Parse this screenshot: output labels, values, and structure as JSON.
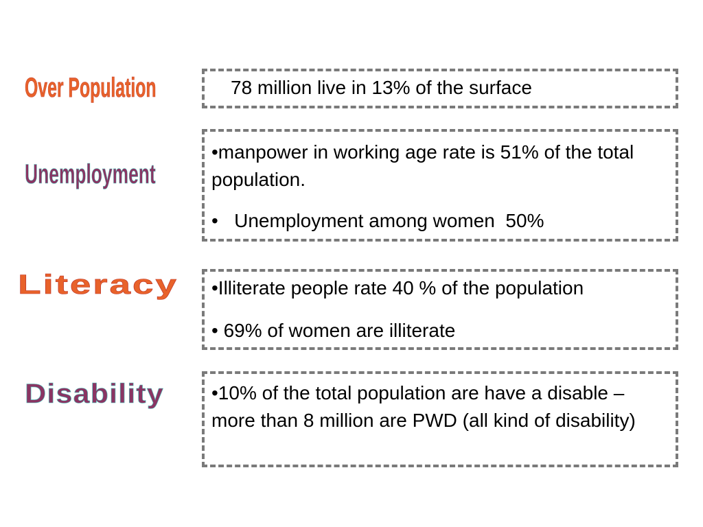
{
  "rows": [
    {
      "label": "Over Population",
      "lines": [
        "78 million  live in 13% of the surface"
      ]
    },
    {
      "label": "Unemployment",
      "lines": [
        "•manpower in working age rate is 51% of the total population.",
        "•   Unemployment among women  50%"
      ]
    },
    {
      "label": "Literacy",
      "lines": [
        "•Illiterate people rate 40 % of the population",
        "• 69% of women are illiterate"
      ]
    },
    {
      "label": "Disability",
      "lines": [
        "•10% of the total population are have a disable – more than 8 million are PWD (all kind of disability)"
      ]
    }
  ],
  "colors": {
    "orange": "#e8622a",
    "purple": "#8a3563",
    "border": "#7a7a7a"
  }
}
